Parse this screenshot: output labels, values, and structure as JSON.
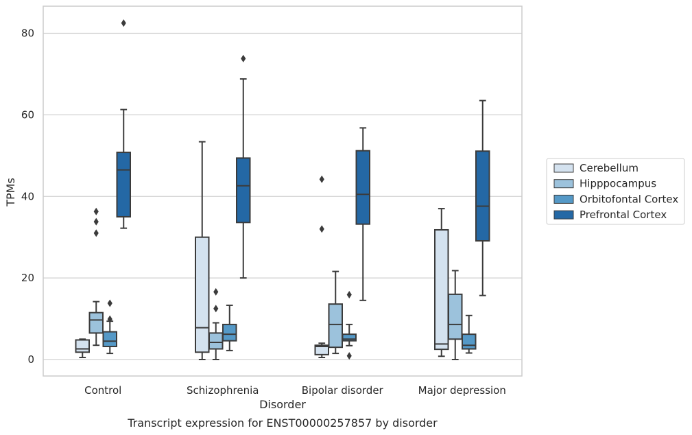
{
  "chart_data": {
    "type": "box",
    "title": "",
    "caption": "Transcript expression for ENST00000257857 by disorder",
    "xlabel": "Disorder",
    "ylabel": "TPMs",
    "ylim": [
      -4,
      87
    ],
    "yticks": [
      0,
      20,
      40,
      60,
      80
    ],
    "grid": "horizontal",
    "legend_position": "right",
    "categories": [
      "Control",
      "Schizophrenia",
      "Bipolar disorder",
      "Major depression"
    ],
    "series": [
      {
        "name": "Cerebellum",
        "color": "#d4e2ef",
        "boxes": [
          {
            "whislo": 0.5,
            "q1": 1.8,
            "med": 2.6,
            "q3": 4.8,
            "whishi": 5.0,
            "fliers": []
          },
          {
            "whislo": 0.0,
            "q1": 1.8,
            "med": 7.8,
            "q3": 30.0,
            "whishi": 53.4,
            "fliers": []
          },
          {
            "whislo": 0.5,
            "q1": 1.2,
            "med": 3.2,
            "q3": 3.5,
            "whishi": 4.0,
            "fliers": [
              32.0,
              44.2
            ]
          },
          {
            "whislo": 0.8,
            "q1": 2.5,
            "med": 3.8,
            "q3": 31.8,
            "whishi": 37.0,
            "fliers": []
          }
        ]
      },
      {
        "name": "Hipppocampus",
        "color": "#9cc2dc",
        "boxes": [
          {
            "whislo": 3.5,
            "q1": 6.5,
            "med": 9.7,
            "q3": 11.5,
            "whishi": 14.2,
            "fliers": [
              31.0,
              33.8,
              36.3
            ]
          },
          {
            "whislo": 0.0,
            "q1": 2.6,
            "med": 4.2,
            "q3": 6.5,
            "whishi": 9.0,
            "fliers": [
              12.5,
              16.6
            ]
          },
          {
            "whislo": 1.5,
            "q1": 3.0,
            "med": 8.6,
            "q3": 13.6,
            "whishi": 21.6,
            "fliers": []
          },
          {
            "whislo": 0.0,
            "q1": 5.0,
            "med": 8.6,
            "q3": 16.0,
            "whishi": 21.8,
            "fliers": []
          }
        ]
      },
      {
        "name": "Orbitofontal Cortex",
        "color": "#5599c7",
        "boxes": [
          {
            "whislo": 1.5,
            "q1": 3.2,
            "med": 4.5,
            "q3": 6.8,
            "whishi": 9.4,
            "fliers": [
              9.9,
              13.8
            ]
          },
          {
            "whislo": 2.2,
            "q1": 4.6,
            "med": 6.2,
            "q3": 8.6,
            "whishi": 13.3,
            "fliers": []
          },
          {
            "whislo": 3.4,
            "q1": 4.6,
            "med": 5.0,
            "q3": 6.2,
            "whishi": 8.6,
            "fliers": [
              0.9,
              15.9
            ]
          },
          {
            "whislo": 1.6,
            "q1": 2.6,
            "med": 3.5,
            "q3": 6.2,
            "whishi": 10.8,
            "fliers": []
          }
        ]
      },
      {
        "name": "Prefrontal Cortex",
        "color": "#2468a5",
        "boxes": [
          {
            "whislo": 32.2,
            "q1": 35.0,
            "med": 46.5,
            "q3": 50.8,
            "whishi": 61.3,
            "fliers": [
              82.5
            ]
          },
          {
            "whislo": 20.0,
            "q1": 33.6,
            "med": 42.6,
            "q3": 49.4,
            "whishi": 68.8,
            "fliers": [
              73.8
            ]
          },
          {
            "whislo": 14.5,
            "q1": 33.2,
            "med": 40.5,
            "q3": 51.2,
            "whishi": 56.8,
            "fliers": []
          },
          {
            "whislo": 15.7,
            "q1": 29.1,
            "med": 37.6,
            "q3": 51.1,
            "whishi": 63.5,
            "fliers": []
          }
        ]
      }
    ]
  }
}
